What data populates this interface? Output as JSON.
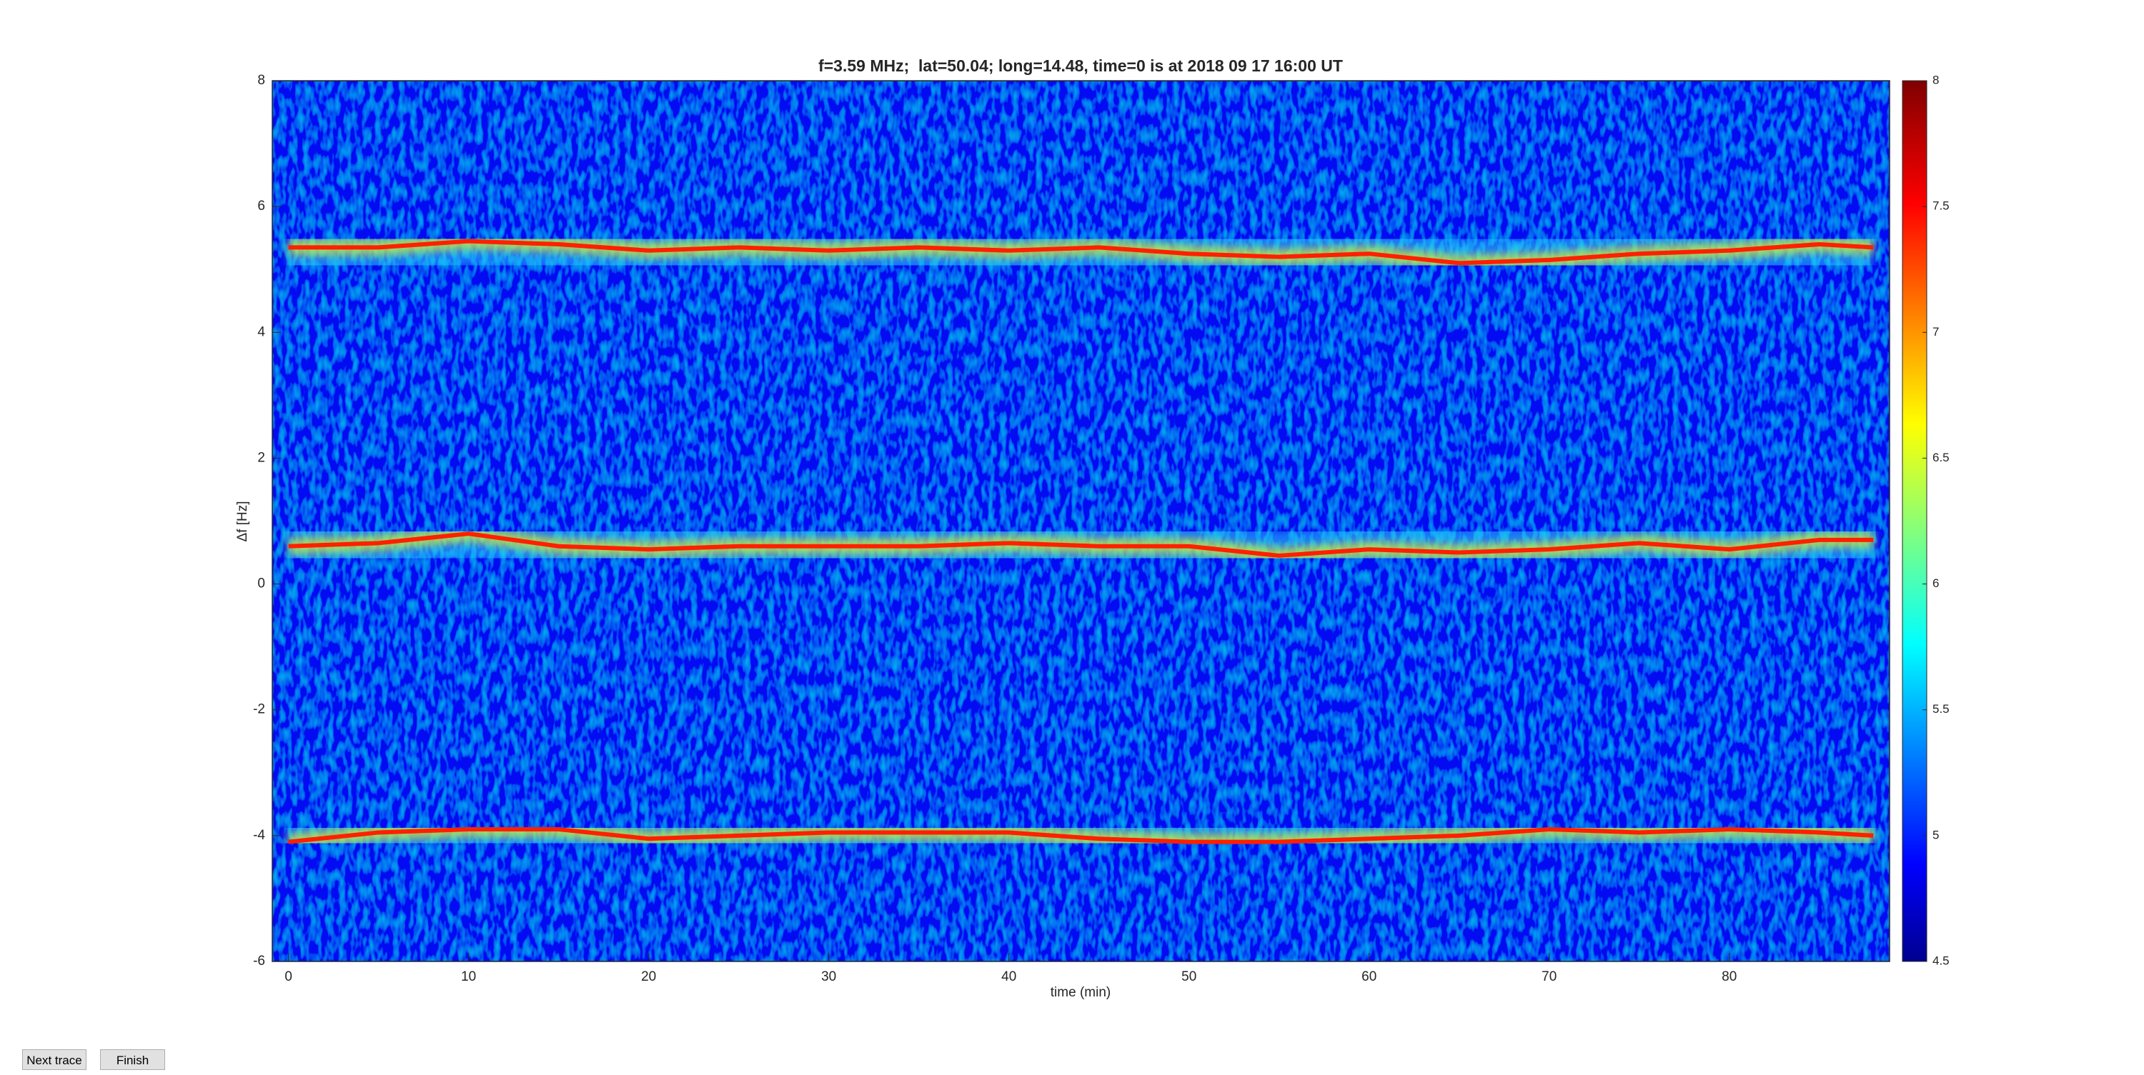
{
  "window": {
    "buttons": [
      "Next trace",
      "Finish"
    ]
  },
  "chart_data": {
    "type": "spectrogram",
    "title": "f=3.59 MHz;  lat=50.04; long=14.48, time=0 is at 2018 09 17 16:00 UT",
    "xlabel": "time (min)",
    "ylabel": "Δf [Hz]",
    "xlim": [
      -0.9,
      88.9
    ],
    "xticks": [
      0,
      10,
      20,
      30,
      40,
      50,
      60,
      70,
      80
    ],
    "ylim": [
      -6,
      8
    ],
    "yticks": [
      -6,
      -4,
      -2,
      0,
      2,
      4,
      6,
      8
    ],
    "colorbar": {
      "colormap": "jet",
      "lim": [
        4.5,
        8
      ],
      "ticks": [
        4.5,
        5,
        5.5,
        6,
        6.5,
        7,
        7.5,
        8
      ]
    },
    "traces": [
      {
        "color": "#ff2000",
        "x": [
          0,
          5,
          10,
          15,
          20,
          25,
          30,
          35,
          40,
          45,
          50,
          55,
          60,
          65,
          70,
          75,
          80,
          85,
          88
        ],
        "values": [
          5.35,
          5.35,
          5.45,
          5.4,
          5.3,
          5.35,
          5.3,
          5.35,
          5.3,
          5.35,
          5.25,
          5.2,
          5.25,
          5.1,
          5.15,
          5.25,
          5.3,
          5.4,
          5.35
        ]
      },
      {
        "color": "#ff2000",
        "x": [
          0,
          5,
          10,
          15,
          20,
          25,
          30,
          35,
          40,
          45,
          50,
          55,
          60,
          65,
          70,
          75,
          80,
          85,
          88
        ],
        "values": [
          0.6,
          0.65,
          0.8,
          0.6,
          0.55,
          0.6,
          0.6,
          0.6,
          0.65,
          0.6,
          0.6,
          0.45,
          0.55,
          0.5,
          0.55,
          0.65,
          0.55,
          0.7,
          0.7
        ]
      },
      {
        "color": "#ff2000",
        "x": [
          0,
          5,
          10,
          15,
          20,
          25,
          30,
          35,
          40,
          45,
          50,
          55,
          60,
          65,
          70,
          75,
          80,
          85,
          88
        ],
        "values": [
          -4.1,
          -3.95,
          -3.9,
          -3.9,
          -4.05,
          -4.0,
          -3.95,
          -3.95,
          -3.95,
          -4.05,
          -4.1,
          -4.1,
          -4.05,
          -4.0,
          -3.9,
          -3.95,
          -3.9,
          -3.95,
          -4.0
        ]
      }
    ]
  }
}
